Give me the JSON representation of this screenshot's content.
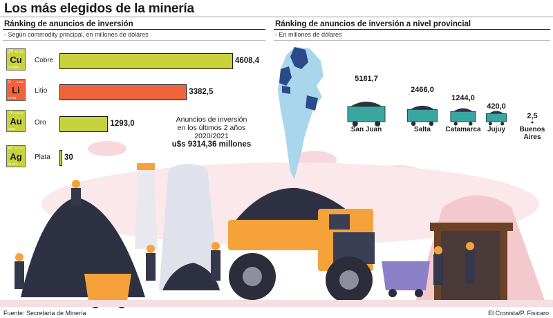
{
  "title": "Los más elegidos de la minería",
  "left_section": {
    "title": "Ránking de anuncios de inversión",
    "subtitle": "- Según commodity principal, en millones de dólares"
  },
  "right_section": {
    "title": "Ránking de anuncios de inversión a nivel provincial",
    "subtitle": "- En millones de dólares"
  },
  "total_box": {
    "line1": "Anuncios de inversión",
    "line2": "en los últimos 2 años",
    "line3": "2020/2021",
    "line4": "u$s 9314,36 millones"
  },
  "colors": {
    "lime": "#c8d23c",
    "orange": "#f0643c",
    "cobre_tile": "#c8d23c",
    "litio_tile": "#f0643c"
  },
  "elements": [
    {
      "num": "29",
      "mass": "63.546",
      "sym": "Cu",
      "name": "COBRE",
      "color": "#c8d23c"
    },
    {
      "num": "3",
      "mass": "6.941",
      "sym": "Li",
      "name": "LITIO",
      "color": "#f0643c"
    },
    {
      "num": "79",
      "mass": "196.97",
      "sym": "Au",
      "name": "ORO",
      "color": "#c8d23c"
    },
    {
      "num": "47",
      "mass": "107.87",
      "sym": "Ag",
      "name": "PLATA",
      "color": "#c8d23c"
    }
  ],
  "chart_data": [
    {
      "type": "bar",
      "orientation": "horizontal",
      "categories": [
        "Cobre",
        "Litio",
        "Oro",
        "Plata"
      ],
      "values": [
        4608.4,
        3382.5,
        1293.0,
        30
      ],
      "value_labels": [
        "4608,4",
        "3382,5",
        "1293,0",
        "30"
      ],
      "colors": [
        "#c8d23c",
        "#f0643c",
        "#c8d23c",
        "#c8d23c"
      ]
    },
    {
      "type": "bar",
      "categories": [
        "San Juan",
        "Salta",
        "Catamarca",
        "Jujuy",
        "Buenos Aires"
      ],
      "values": [
        5181.7,
        2466.0,
        1244.0,
        420.0,
        2.5
      ],
      "value_labels": [
        "5181,7",
        "2466,0",
        "1244,0",
        "420,0",
        "2,5"
      ]
    }
  ],
  "footer": {
    "source": "Fuente: Secretaría de Minería",
    "credit": "El Cronista/P. Fisicaro"
  }
}
